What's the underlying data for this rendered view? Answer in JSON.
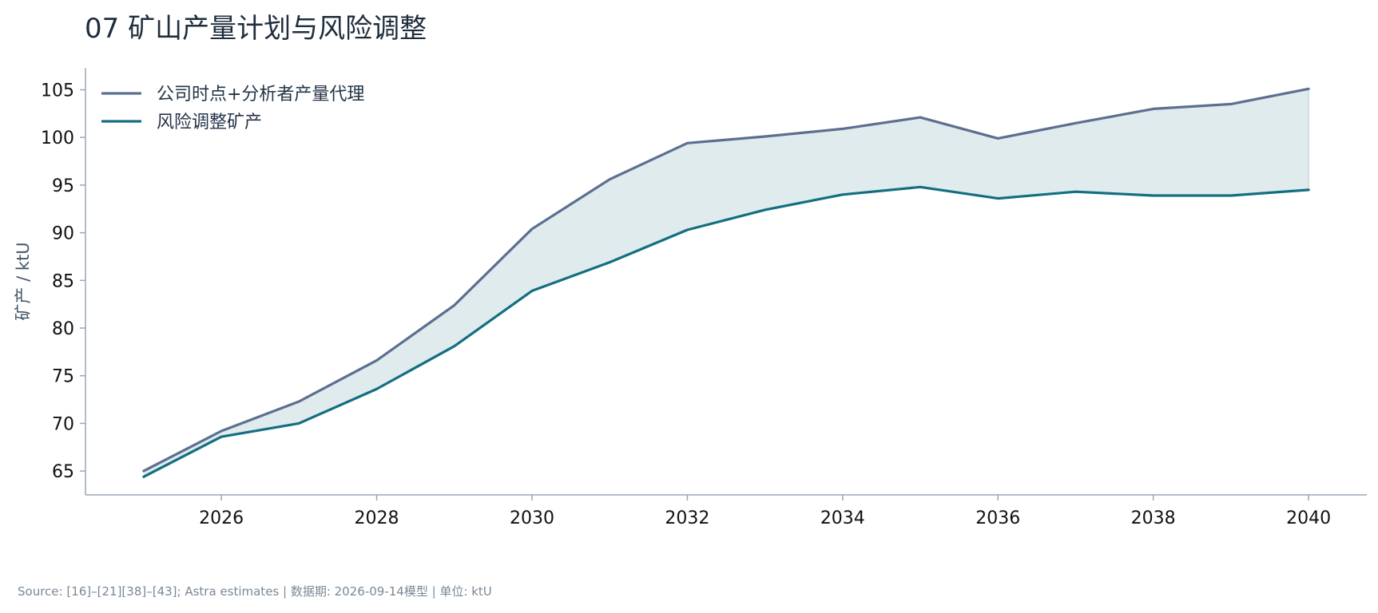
{
  "title": "07 矿山产量计划与风险调整",
  "source_note": "Source: [16]–[21][38]–[43]; Astra estimates | 数据期: 2026-09-14模型 | 单位: ktU",
  "colors": {
    "plan": "#5c6f91",
    "risk": "#136f80",
    "band": "#e0ebee",
    "axis": "#9aa7b5"
  },
  "chart_data": {
    "type": "line",
    "title": "07 矿山产量计划与风险调整",
    "xlabel": "",
    "ylabel": "矿产 / ktU",
    "x": [
      2025,
      2026,
      2027,
      2028,
      2029,
      2030,
      2031,
      2032,
      2033,
      2034,
      2035,
      2036,
      2037,
      2038,
      2039,
      2040
    ],
    "xticks": [
      "2026",
      "2028",
      "2030",
      "2032",
      "2034",
      "2036",
      "2038",
      "2040"
    ],
    "yticks": [
      "65",
      "70",
      "75",
      "80",
      "85",
      "90",
      "95",
      "100",
      "105"
    ],
    "xlim": [
      2024.25,
      2040.75
    ],
    "ylim": [
      62.5,
      107.3
    ],
    "series": [
      {
        "name": "公司时点+分析者产量代理",
        "values": [
          65.0,
          69.2,
          72.3,
          76.6,
          82.4,
          90.4,
          95.6,
          99.4,
          100.1,
          100.9,
          102.1,
          99.9,
          101.5,
          103.0,
          103.5,
          105.1
        ]
      },
      {
        "name": "风险调整矿产",
        "values": [
          64.4,
          68.6,
          70.0,
          73.6,
          78.1,
          83.9,
          86.9,
          90.3,
          92.4,
          94.0,
          94.8,
          93.6,
          94.3,
          93.9,
          93.9,
          94.5
        ]
      }
    ],
    "shaded_band": "between series",
    "legend_position": "top-left",
    "grid": false
  }
}
